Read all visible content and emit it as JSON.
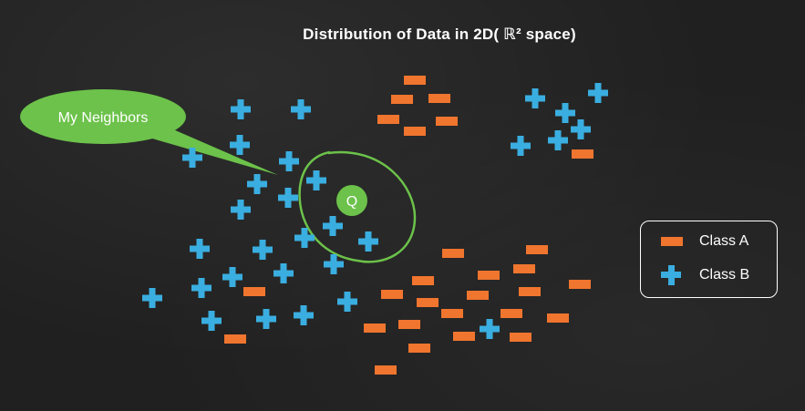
{
  "title": "Distribution of Data in 2D( ℝ² space)",
  "callout": {
    "label": "My Neighbors"
  },
  "query_point": {
    "label": "Q"
  },
  "legend": {
    "class_a": "Class A",
    "class_b": "Class B"
  },
  "colors": {
    "background": "#202020",
    "class_a": "#f0752e",
    "class_b": "#3aaee0",
    "callout": "#6cc24a",
    "neighbor_circle": "#6cc24a",
    "text": "#ffffff"
  }
}
